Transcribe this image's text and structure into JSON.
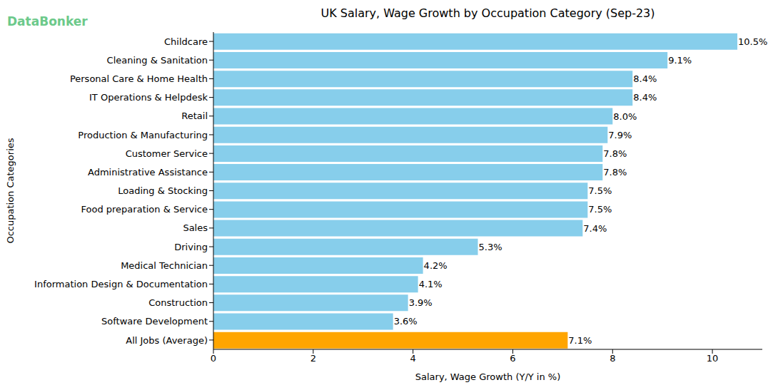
{
  "chart_data": {
    "type": "bar",
    "title": "UK Salary, Wage Growth by Occupation Category (Sep-23)",
    "x_label": "Salary, Wage Growth (Y/Y in %)",
    "y_label": "Occupation Categories",
    "annotations": [
      "DataBonker"
    ],
    "orientation": "horizontal",
    "categories": [
      "Childcare",
      "Cleaning & Sanitation",
      "Personal Care & Home Health",
      "IT Operations & Helpdesk",
      "Retail",
      "Production & Manufacturing",
      "Customer Service",
      "Administrative Assistance",
      "Loading & Stocking",
      "Food preparation & Service",
      "Sales",
      "Driving",
      "Medical Technician",
      "Information Design & Documentation",
      "Construction",
      "Software Development",
      "All Jobs (Average)"
    ],
    "values": [
      10.5,
      9.1,
      8.4,
      8.4,
      8.0,
      7.9,
      7.8,
      7.8,
      7.5,
      7.5,
      7.4,
      5.3,
      4.2,
      4.1,
      3.9,
      3.6,
      7.1
    ],
    "value_labels": [
      "10.5%",
      "9.1%",
      "8.4%",
      "8.4%",
      "8.0%",
      "7.9%",
      "7.8%",
      "7.8%",
      "7.5%",
      "7.5%",
      "7.4%",
      "5.3%",
      "4.2%",
      "4.1%",
      "3.9%",
      "3.6%",
      "7.1%"
    ],
    "colors": [
      "#87ceeb",
      "#87ceeb",
      "#87ceeb",
      "#87ceeb",
      "#87ceeb",
      "#87ceeb",
      "#87ceeb",
      "#87ceeb",
      "#87ceeb",
      "#87ceeb",
      "#87ceeb",
      "#87ceeb",
      "#87ceeb",
      "#87ceeb",
      "#87ceeb",
      "#87ceeb",
      "#ffa500"
    ],
    "xlim": [
      0,
      11
    ],
    "xticks": [
      0,
      2,
      4,
      6,
      8,
      10
    ],
    "grid": false,
    "data_labels": true
  }
}
